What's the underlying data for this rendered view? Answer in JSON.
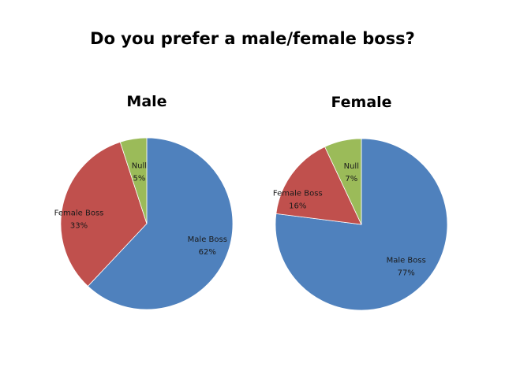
{
  "title": "Do you prefer a male/female boss?",
  "chart_data": [
    {
      "type": "pie",
      "title": "Male",
      "categories": [
        "Male Boss",
        "Female Boss",
        "Null"
      ],
      "values": [
        62,
        33,
        5
      ],
      "labels": [
        "62%",
        "33%",
        "5%"
      ],
      "colors": [
        "#4F81BD",
        "#C0504D",
        "#9BBB59"
      ],
      "start_position": "top",
      "direction": "clockwise",
      "legend": "none",
      "label_placement": "inside"
    },
    {
      "type": "pie",
      "title": "Female",
      "categories": [
        "Male Boss",
        "Female Boss",
        "Null"
      ],
      "values": [
        77,
        16,
        7
      ],
      "labels": [
        "77%",
        "16%",
        "7%"
      ],
      "colors": [
        "#4F81BD",
        "#C0504D",
        "#9BBB59"
      ],
      "start_position": "top",
      "direction": "clockwise",
      "legend": "none",
      "label_placement": "inside"
    }
  ]
}
